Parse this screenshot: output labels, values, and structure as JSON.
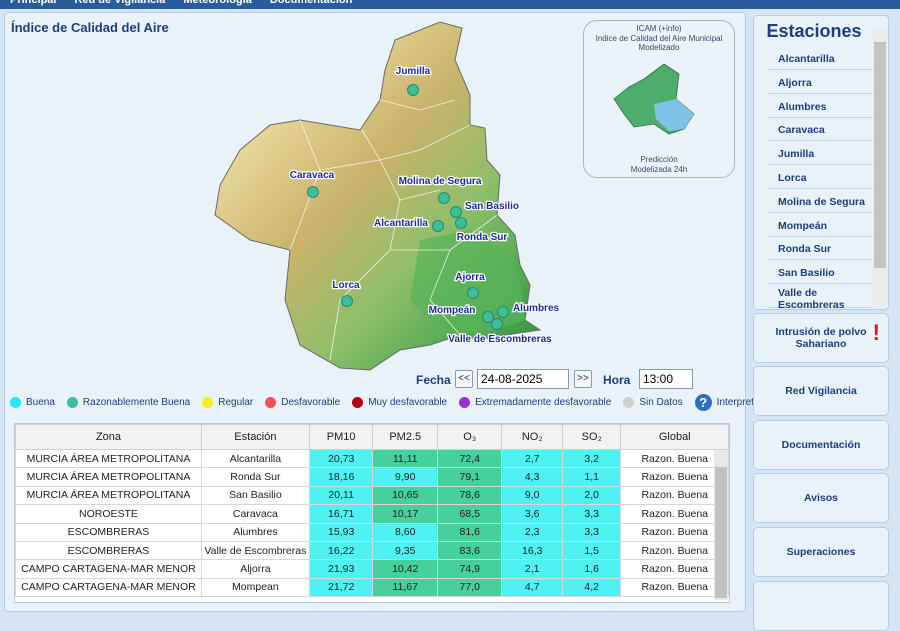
{
  "nav": [
    "Principal",
    "Red de Vigilancia",
    "Meteorología",
    "Documentación"
  ],
  "title": "Índice de Calidad del Aire",
  "map": {
    "stations": [
      "Jumilla",
      "Caravaca",
      "Molina de Segura",
      "San Basilio",
      "Alcantarilla",
      "Ronda Sur",
      "Ajorra",
      "Lorca",
      "Mompeán",
      "Alumbres",
      "Valle de Escombreras"
    ]
  },
  "inset": {
    "lines": [
      "ICAM (+info)",
      "Indice de Calidad del Aire Municipal",
      "Modelizado"
    ],
    "caption": [
      "Predicción",
      "Modelizada 24h"
    ]
  },
  "controls": {
    "date_label": "Fecha",
    "date": "24-08-2025",
    "prev": "<<",
    "next": ">>",
    "hour_label": "Hora",
    "hour": "13:00"
  },
  "legend": [
    {
      "label": "Buena",
      "color": "#22e8f4"
    },
    {
      "label": "Razonablemente Buena",
      "color": "#3cbf98"
    },
    {
      "label": "Regular",
      "color": "#f5f01e"
    },
    {
      "label": "Desfavorable",
      "color": "#f0505e"
    },
    {
      "label": "Muy desfavorable",
      "color": "#b00010"
    },
    {
      "label": "Extremadamente desfavorable",
      "color": "#9a2fd6"
    },
    {
      "label": "Sin Datos",
      "color": "#cfcfcf"
    },
    {
      "label": "Interpretación",
      "color": "#2d6fc0"
    }
  ],
  "table": {
    "headers": [
      "Zona",
      "Estación",
      "PM10",
      "PM2.5",
      "O₃",
      "NO₂",
      "SO₂",
      "Global"
    ],
    "rows": [
      [
        "MURCIA ÁREA METROPOLITANA",
        "Alcantarilla",
        "20,73",
        "11,11",
        "72,4",
        "2,7",
        "3,2",
        "Razon. Buena"
      ],
      [
        "MURCIA ÁREA METROPOLITANA",
        "Ronda Sur",
        "18,16",
        "9,90",
        "79,1",
        "4,3",
        "1,1",
        "Razon. Buena"
      ],
      [
        "MURCIA ÁREA METROPOLITANA",
        "San Basilio",
        "20,11",
        "10,65",
        "78,6",
        "9,0",
        "2,0",
        "Razon. Buena"
      ],
      [
        "NOROESTE",
        "Caravaca",
        "16,71",
        "10,17",
        "68,5",
        "3,6",
        "3,3",
        "Razon. Buena"
      ],
      [
        "ESCOMBRERAS",
        "Alumbres",
        "15,93",
        "8,60",
        "81,6",
        "2,3",
        "3,3",
        "Razon. Buena"
      ],
      [
        "ESCOMBRERAS",
        "Valle de Escombreras",
        "16,22",
        "9,35",
        "83,6",
        "16,3",
        "1,5",
        "Razon. Buena"
      ],
      [
        "CAMPO CARTAGENA-MAR MENOR",
        "Aljorra",
        "21,93",
        "10,42",
        "74,9",
        "2,1",
        "1,6",
        "Razon. Buena"
      ],
      [
        "CAMPO CARTAGENA-MAR MENOR",
        "Mompean",
        "21,72",
        "11,67",
        "77,0",
        "4,7",
        "4,2",
        "Razon. Buena"
      ]
    ],
    "cell_colors": [
      [
        "#4ef2f2",
        "#46d09e",
        "#46d09e",
        "#4ef2f2",
        "#4ef2f2"
      ],
      [
        "#4ef2f2",
        "#4ef2f2",
        "#46d09e",
        "#4ef2f2",
        "#4ef2f2"
      ],
      [
        "#4ef2f2",
        "#46d09e",
        "#46d09e",
        "#4ef2f2",
        "#4ef2f2"
      ],
      [
        "#4ef2f2",
        "#46d09e",
        "#46d09e",
        "#4ef2f2",
        "#4ef2f2"
      ],
      [
        "#4ef2f2",
        "#4ef2f2",
        "#46d09e",
        "#4ef2f2",
        "#4ef2f2"
      ],
      [
        "#4ef2f2",
        "#4ef2f2",
        "#46d09e",
        "#4ef2f2",
        "#4ef2f2"
      ],
      [
        "#4ef2f2",
        "#46d09e",
        "#46d09e",
        "#4ef2f2",
        "#4ef2f2"
      ],
      [
        "#4ef2f2",
        "#46d09e",
        "#46d09e",
        "#4ef2f2",
        "#4ef2f2"
      ]
    ]
  },
  "sidebar": {
    "title": "Estaciones",
    "stations": [
      "Alcantarilla",
      "Aljorra",
      "Alumbres",
      "Caravaca",
      "Jumilla",
      "Lorca",
      "Molina de Segura",
      "Mompeán",
      "Ronda Sur",
      "San Basilio",
      "Valle de Escombreras"
    ],
    "buttons": [
      "Intrusión de polvo Sahariano",
      "Red Vigilancia",
      "Documentación",
      "Avisos",
      "Superaciones"
    ],
    "alert": "!"
  }
}
